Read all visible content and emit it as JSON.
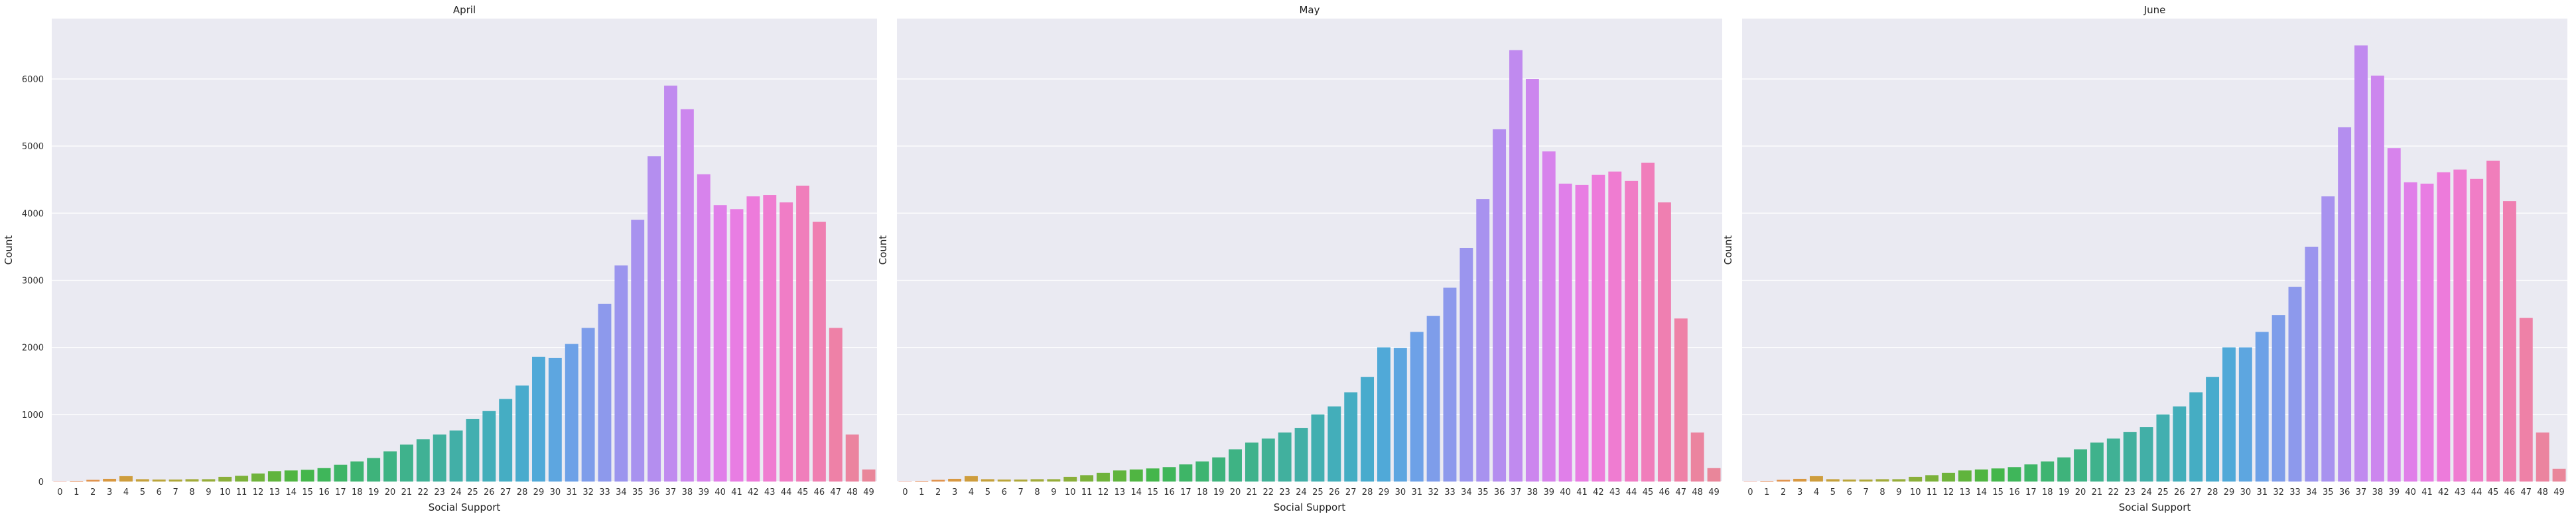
{
  "chart_data": [
    {
      "type": "bar",
      "title": "April",
      "xlabel": "Social Support",
      "ylabel": "Count",
      "ylim": [
        0,
        6900
      ],
      "yticks": [
        0,
        1000,
        2000,
        3000,
        4000,
        5000,
        6000
      ],
      "grid": true,
      "categories": [
        "0",
        "1",
        "2",
        "3",
        "4",
        "5",
        "6",
        "7",
        "8",
        "9",
        "10",
        "11",
        "12",
        "13",
        "14",
        "15",
        "16",
        "17",
        "18",
        "19",
        "20",
        "21",
        "22",
        "23",
        "24",
        "25",
        "26",
        "27",
        "28",
        "29",
        "30",
        "31",
        "32",
        "33",
        "34",
        "35",
        "36",
        "37",
        "38",
        "39",
        "40",
        "41",
        "42",
        "43",
        "44",
        "45",
        "46",
        "47",
        "48",
        "49"
      ],
      "values": [
        5,
        10,
        25,
        40,
        80,
        35,
        30,
        30,
        35,
        35,
        70,
        85,
        120,
        155,
        165,
        175,
        200,
        250,
        300,
        350,
        450,
        550,
        630,
        700,
        760,
        930,
        1050,
        1230,
        1430,
        1860,
        1840,
        2050,
        2290,
        2650,
        3220,
        3900,
        4850,
        5900,
        5550,
        4580,
        4120,
        4060,
        4250,
        4270,
        4160,
        4410,
        3870,
        2290,
        700,
        180
      ]
    },
    {
      "type": "bar",
      "title": "May",
      "xlabel": "Social Support",
      "ylabel": "Count",
      "ylim": [
        0,
        6900
      ],
      "yticks": [
        0,
        1000,
        2000,
        3000,
        4000,
        5000,
        6000
      ],
      "grid": true,
      "categories": [
        "0",
        "1",
        "2",
        "3",
        "4",
        "5",
        "6",
        "7",
        "8",
        "9",
        "10",
        "11",
        "12",
        "13",
        "14",
        "15",
        "16",
        "17",
        "18",
        "19",
        "20",
        "21",
        "22",
        "23",
        "24",
        "25",
        "26",
        "27",
        "28",
        "29",
        "30",
        "31",
        "32",
        "33",
        "34",
        "35",
        "36",
        "37",
        "38",
        "39",
        "40",
        "41",
        "42",
        "43",
        "44",
        "45",
        "46",
        "47",
        "48",
        "49"
      ],
      "values": [
        5,
        10,
        25,
        40,
        80,
        35,
        30,
        30,
        35,
        35,
        70,
        95,
        130,
        165,
        180,
        195,
        215,
        255,
        300,
        360,
        480,
        580,
        640,
        730,
        800,
        1000,
        1120,
        1330,
        1560,
        2000,
        1990,
        2230,
        2470,
        2890,
        3480,
        4210,
        5250,
        6430,
        6000,
        4920,
        4440,
        4420,
        4570,
        4620,
        4480,
        4750,
        4160,
        2430,
        730,
        200
      ]
    },
    {
      "type": "bar",
      "title": "June",
      "xlabel": "Social Support",
      "ylabel": "Count",
      "ylim": [
        0,
        6900
      ],
      "yticks": [
        0,
        1000,
        2000,
        3000,
        4000,
        5000,
        6000
      ],
      "grid": true,
      "categories": [
        "0",
        "1",
        "2",
        "3",
        "4",
        "5",
        "6",
        "7",
        "8",
        "9",
        "10",
        "11",
        "12",
        "13",
        "14",
        "15",
        "16",
        "17",
        "18",
        "19",
        "20",
        "21",
        "22",
        "23",
        "24",
        "25",
        "26",
        "27",
        "28",
        "29",
        "30",
        "31",
        "32",
        "33",
        "34",
        "35",
        "36",
        "37",
        "38",
        "39",
        "40",
        "41",
        "42",
        "43",
        "44",
        "45",
        "46",
        "47",
        "48",
        "49"
      ],
      "values": [
        5,
        10,
        25,
        40,
        80,
        35,
        30,
        30,
        35,
        35,
        70,
        95,
        130,
        165,
        180,
        195,
        215,
        255,
        300,
        360,
        480,
        580,
        640,
        740,
        810,
        1000,
        1120,
        1330,
        1560,
        2000,
        2000,
        2230,
        2480,
        2900,
        3500,
        4250,
        5280,
        6500,
        6050,
        4970,
        4460,
        4440,
        4610,
        4650,
        4510,
        4780,
        4180,
        2440,
        730,
        190
      ]
    }
  ],
  "palette": [
    "#e6846d",
    "#e68f57",
    "#dd9444",
    "#d19c3d",
    "#c6a13c",
    "#baa63b",
    "#aaa93a",
    "#9bac3a",
    "#8daf3a",
    "#7bb13a",
    "#6cb33b",
    "#58b53f",
    "#45b646",
    "#3fb659",
    "#3eb569",
    "#3eb475",
    "#3eb380",
    "#3fb28b",
    "#40b195",
    "#41b0a0",
    "#42afab",
    "#43aeb7",
    "#45adc3",
    "#49abcf",
    "#53a8dc",
    "#67a3e5",
    "#7c9eea",
    "#8e99ec",
    "#9f94ee",
    "#ae90ef",
    "#bd8bef",
    "#cc86ee",
    "#d982ec",
    "#e47ee7",
    "#ec7bdf",
    "#ef7cd2",
    "#f07dc5",
    "#f07eb8",
    "#ef80ab",
    "#ec84a0",
    "#e9869a"
  ]
}
